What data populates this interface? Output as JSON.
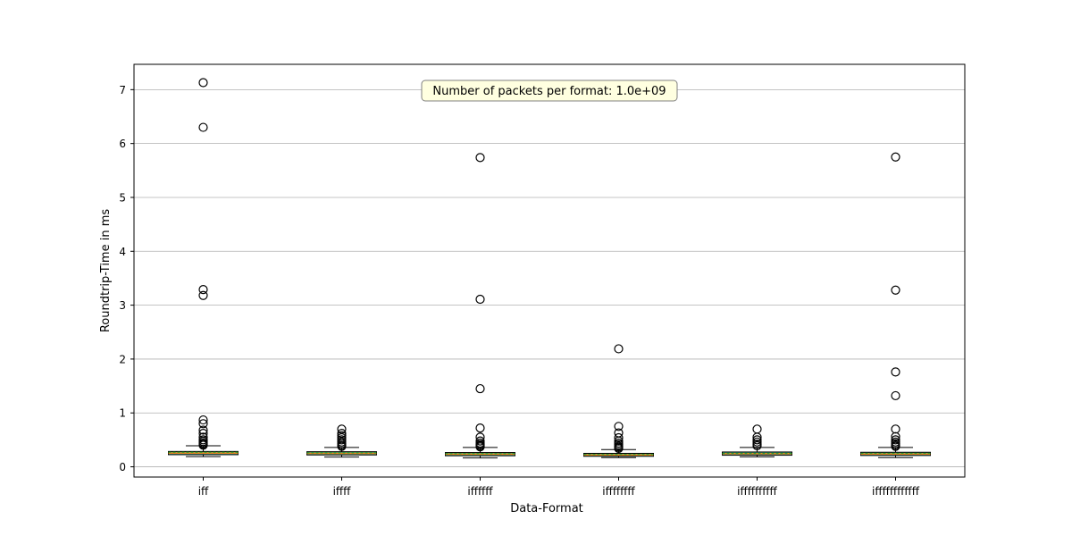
{
  "chart_data": {
    "type": "box",
    "xlabel": "Data-Format",
    "ylabel": "Roundtrip-Time in ms",
    "ylim": [
      -0.19,
      7.47
    ],
    "yticks": [
      0,
      1,
      2,
      3,
      4,
      5,
      6,
      7
    ],
    "grid": "y",
    "annotation": "Number of packets per format: 1.0e+09",
    "colors": {
      "box_fill": "#4ea690",
      "median": "#ff7f0e",
      "mean": "#2ca02c",
      "grid": "#b0b0b0"
    },
    "categories": [
      "iff",
      "iffff",
      "iffffff",
      "iffffffff",
      "iffffffffff",
      "iffffffffffff"
    ],
    "boxes": [
      {
        "q1": 0.225,
        "median": 0.255,
        "mean": 0.27,
        "q3": 0.285,
        "whisker_low": 0.19,
        "whisker_high": 0.39,
        "outliers": [
          7.13,
          6.3,
          3.29,
          3.18,
          0.87,
          0.8,
          0.68,
          0.62,
          0.55,
          0.5,
          0.47,
          0.44,
          0.42,
          0.4
        ]
      },
      {
        "q1": 0.22,
        "median": 0.25,
        "mean": 0.26,
        "q3": 0.28,
        "whisker_low": 0.18,
        "whisker_high": 0.36,
        "outliers": [
          0.7,
          0.62,
          0.58,
          0.54,
          0.5,
          0.46,
          0.43,
          0.4,
          0.38
        ]
      },
      {
        "q1": 0.205,
        "median": 0.235,
        "mean": 0.245,
        "q3": 0.265,
        "whisker_low": 0.165,
        "whisker_high": 0.36,
        "outliers": [
          5.74,
          3.11,
          1.45,
          0.72,
          0.55,
          0.48,
          0.44,
          0.41,
          0.39,
          0.37
        ]
      },
      {
        "q1": 0.195,
        "median": 0.22,
        "mean": 0.23,
        "q3": 0.25,
        "whisker_low": 0.17,
        "whisker_high": 0.32,
        "outliers": [
          2.19,
          0.75,
          0.63,
          0.54,
          0.48,
          0.44,
          0.41,
          0.38,
          0.36,
          0.34
        ]
      },
      {
        "q1": 0.215,
        "median": 0.245,
        "mean": 0.25,
        "q3": 0.275,
        "whisker_low": 0.185,
        "whisker_high": 0.36,
        "outliers": [
          0.7,
          0.55,
          0.5,
          0.46,
          0.42,
          0.39
        ]
      },
      {
        "q1": 0.21,
        "median": 0.24,
        "mean": 0.25,
        "q3": 0.27,
        "whisker_low": 0.17,
        "whisker_high": 0.36,
        "outliers": [
          5.75,
          3.28,
          1.76,
          1.32,
          0.7,
          0.56,
          0.5,
          0.46,
          0.43,
          0.4,
          0.38
        ]
      }
    ]
  }
}
